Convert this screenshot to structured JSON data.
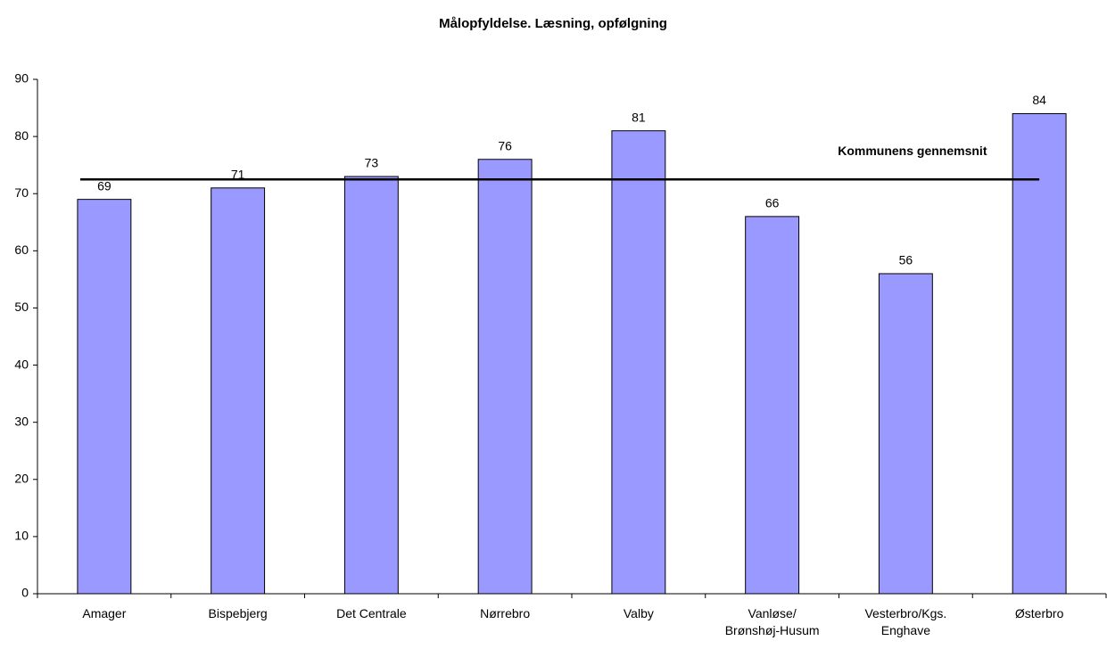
{
  "chart_data": {
    "type": "bar",
    "title": "Målopfyldelse. Læsning, opfølgning",
    "categories": [
      "Amager",
      "Bispebjerg",
      "Det Centrale",
      "Nørrebro",
      "Valby",
      "Vanløse/\nBrønshøj-Husum",
      "Vesterbro/Kgs.\nEnghave",
      "Østerbro"
    ],
    "values": [
      69,
      71,
      73,
      76,
      81,
      66,
      56,
      84
    ],
    "color": "#9999ff",
    "ylim": [
      0,
      90
    ],
    "yticks": [
      0,
      10,
      20,
      30,
      40,
      50,
      60,
      70,
      80,
      90
    ],
    "reference_line": {
      "label": "Kommunens gennemsnit",
      "value": 72.5
    }
  }
}
